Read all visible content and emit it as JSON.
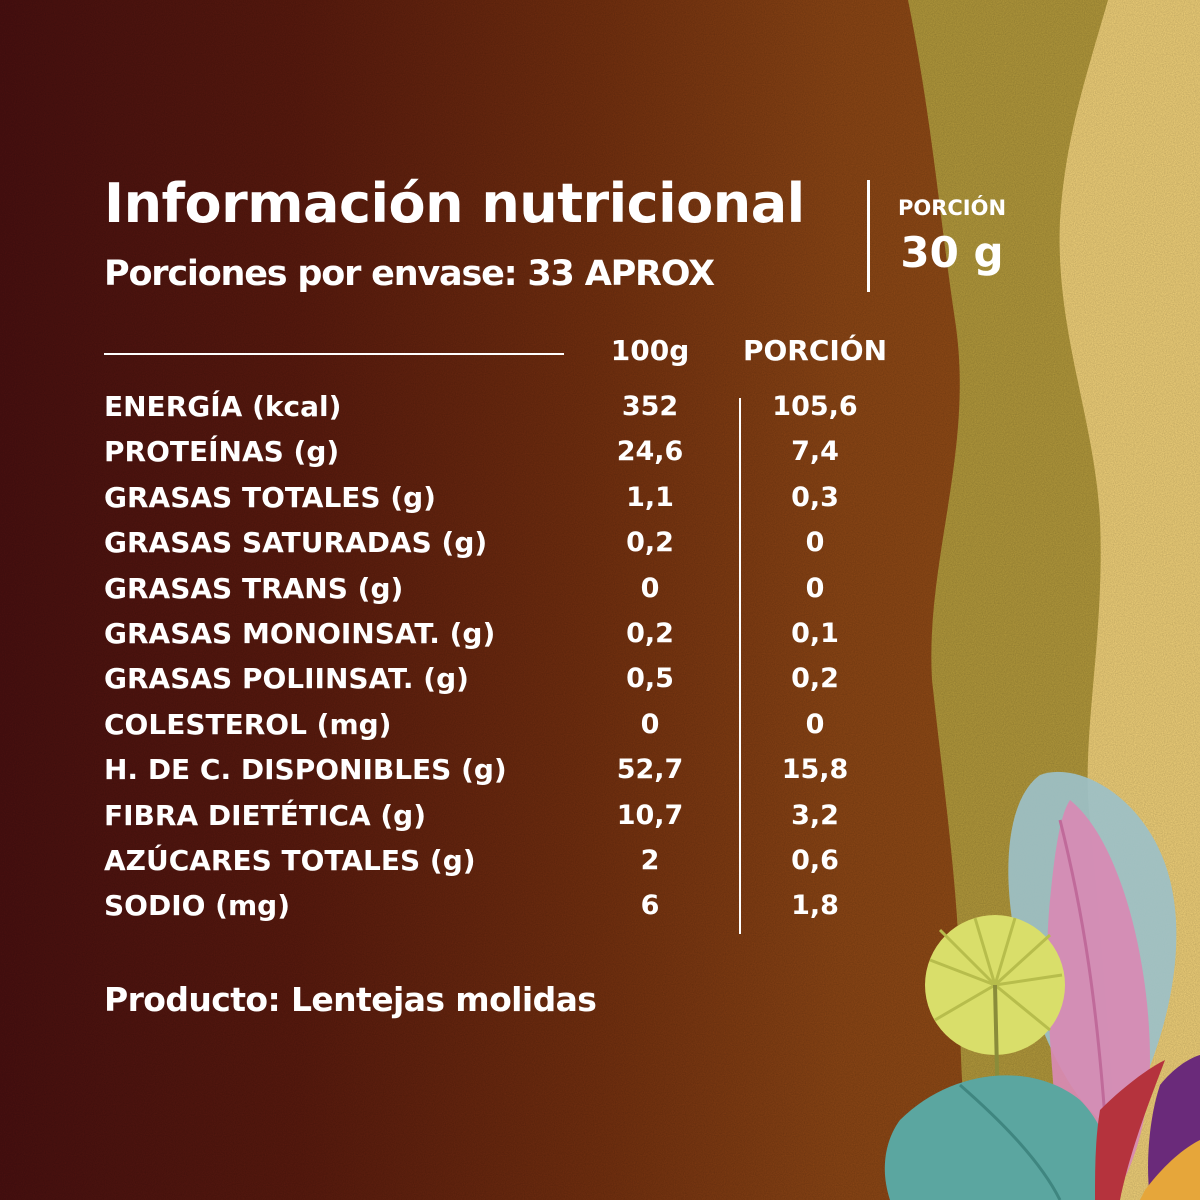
{
  "header": {
    "title": "Información nutricional",
    "servings_per_package": "Porciones por envase: 33 APROX"
  },
  "portion": {
    "label": "PORCIÓN",
    "value": "30 g"
  },
  "table": {
    "columns": [
      "100g",
      "PORCIÓN"
    ],
    "rows": [
      {
        "nutrient": "ENERGÍA (kcal)",
        "per_100g": "352",
        "per_portion": "105,6"
      },
      {
        "nutrient": "PROTEÍNAS (g)",
        "per_100g": "24,6",
        "per_portion": "7,4"
      },
      {
        "nutrient": "GRASAS TOTALES (g)",
        "per_100g": "1,1",
        "per_portion": "0,3"
      },
      {
        "nutrient": "GRASAS SATURADAS (g)",
        "per_100g": "0,2",
        "per_portion": "0"
      },
      {
        "nutrient": "GRASAS TRANS (g)",
        "per_100g": "0",
        "per_portion": "0"
      },
      {
        "nutrient": "GRASAS MONOINSAT. (g)",
        "per_100g": "0,2",
        "per_portion": "0,1"
      },
      {
        "nutrient": "GRASAS POLIINSAT. (g)",
        "per_100g": "0,5",
        "per_portion": "0,2"
      },
      {
        "nutrient": "COLESTEROL (mg)",
        "per_100g": "0",
        "per_portion": "0"
      },
      {
        "nutrient": "H. DE C. DISPONIBLES (g)",
        "per_100g": "52,7",
        "per_portion": "15,8"
      },
      {
        "nutrient": "FIBRA DIETÉTICA (g)",
        "per_100g": "10,7",
        "per_portion": "3,2"
      },
      {
        "nutrient": "AZÚCARES TOTALES (g)",
        "per_100g": "2",
        "per_portion": "0,6"
      },
      {
        "nutrient": "SODIO (mg)",
        "per_100g": "6",
        "per_portion": "1,8"
      }
    ]
  },
  "footer": {
    "product": "Producto: Lentejas molidas"
  },
  "colors": {
    "background_dark": "#4a1010",
    "background_mid": "#8c4615",
    "olive_wave": "#b49a3c",
    "sand_wave": "#f2d27a",
    "text": "#ffffff"
  },
  "decoration": {
    "icons": [
      "tropical-leaves-icon"
    ]
  }
}
